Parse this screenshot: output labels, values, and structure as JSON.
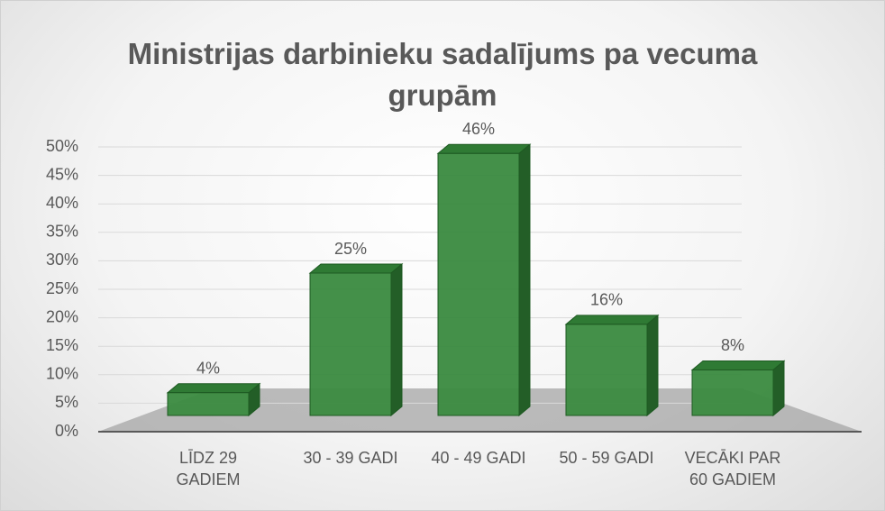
{
  "chart_data": {
    "type": "bar3d",
    "title": "Ministrijas darbinieku sadalījums pa vecuma grupām",
    "categories": [
      "LĪDZ 29 GADIEM",
      "30 - 39 GADI",
      "40 - 49 GADI",
      "50 - 59 GADI",
      "VECĀKI PAR 60 GADIEM"
    ],
    "values": [
      4,
      25,
      46,
      16,
      8
    ],
    "value_labels": [
      "4%",
      "25%",
      "46%",
      "16%",
      "8%"
    ],
    "color": "#3a8a3f",
    "ylim": [
      0,
      50
    ],
    "yticks": [
      {
        "value": 0,
        "label": "0%"
      },
      {
        "value": 5,
        "label": "5%"
      },
      {
        "value": 10,
        "label": "10%"
      },
      {
        "value": 15,
        "label": "15%"
      },
      {
        "value": 20,
        "label": "20%"
      },
      {
        "value": 25,
        "label": "25%"
      },
      {
        "value": 30,
        "label": "30%"
      },
      {
        "value": 35,
        "label": "35%"
      },
      {
        "value": 40,
        "label": "40%"
      },
      {
        "value": 45,
        "label": "45%"
      },
      {
        "value": 50,
        "label": "50%"
      }
    ],
    "grid": true
  }
}
